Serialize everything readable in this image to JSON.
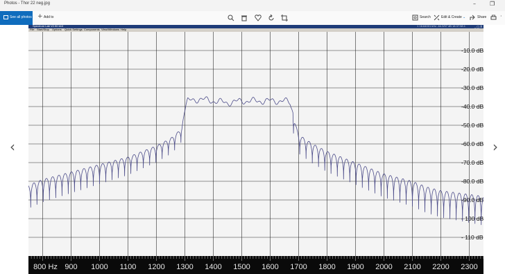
{
  "window": {
    "title": "Photos - Thor 22 neg.jpg",
    "minimize_glyph": "–",
    "maximize_glyph": "❐"
  },
  "toolbar": {
    "see_all": "See all photos",
    "add_to": "Add to",
    "search": "Search",
    "edit_create": "Edit & Create",
    "share": "Share",
    "icons": [
      "zoom-icon",
      "delete-icon",
      "favorite-icon",
      "rotate-icon",
      "crop-icon",
      "print-icon",
      "more-icon"
    ]
  },
  "spectrum_app": {
    "title": "Spectrum Lab V2.90 b10",
    "status": "1 16.64001 kHz  -64.3/57 dB  18:37:58.1",
    "window_buttons": "_ □ X",
    "menu": [
      "File",
      "Start/Stop",
      "Options",
      "Quick Settings",
      "Components",
      "View/Windows",
      "Help"
    ]
  },
  "chart_data": {
    "type": "line",
    "xlabel_unit": "Hz",
    "x_ticks": [
      "800 Hz",
      "900",
      "1000",
      "1100",
      "1200",
      "1300",
      "1400",
      "1500",
      "1600",
      "1700",
      "1800",
      "1900",
      "2000",
      "2100",
      "2200",
      "2300"
    ],
    "y_ticks": [
      "-10.0 dB",
      "-20.0 dB",
      "-30.0 dB",
      "-40.0 dB",
      "-50.0 dB",
      "-60.0 dB",
      "-70.0 dB",
      "-80.0 dB",
      "-90.0 dB",
      "- 100 dB",
      "- 110 dB"
    ],
    "xlim": [
      750,
      2350
    ],
    "ylim": [
      -120,
      0
    ],
    "grid": true,
    "line_color": "#4a4a88",
    "series": [
      {
        "values": [
          [
            750,
            -82
          ],
          [
            800,
            -79
          ],
          [
            850,
            -77
          ],
          [
            900,
            -75
          ],
          [
            950,
            -73
          ],
          [
            1000,
            -71
          ],
          [
            1050,
            -69
          ],
          [
            1100,
            -67
          ],
          [
            1150,
            -64
          ],
          [
            1200,
            -61
          ],
          [
            1250,
            -57
          ],
          [
            1280,
            -53
          ],
          [
            1290,
            -50
          ],
          [
            1300,
            -42
          ],
          [
            1310,
            -37
          ],
          [
            1350,
            -36
          ],
          [
            1400,
            -37
          ],
          [
            1450,
            -38
          ],
          [
            1500,
            -37
          ],
          [
            1550,
            -37
          ],
          [
            1600,
            -37
          ],
          [
            1650,
            -37
          ],
          [
            1670,
            -38
          ],
          [
            1680,
            -43
          ],
          [
            1690,
            -50
          ],
          [
            1700,
            -55
          ],
          [
            1750,
            -60
          ],
          [
            1800,
            -64
          ],
          [
            1850,
            -67
          ],
          [
            1900,
            -70
          ],
          [
            1950,
            -73
          ],
          [
            2000,
            -76
          ],
          [
            2050,
            -78
          ],
          [
            2100,
            -80
          ],
          [
            2150,
            -83
          ],
          [
            2200,
            -85
          ],
          [
            2250,
            -86
          ],
          [
            2300,
            -87
          ],
          [
            2350,
            -88
          ]
        ]
      }
    ]
  }
}
